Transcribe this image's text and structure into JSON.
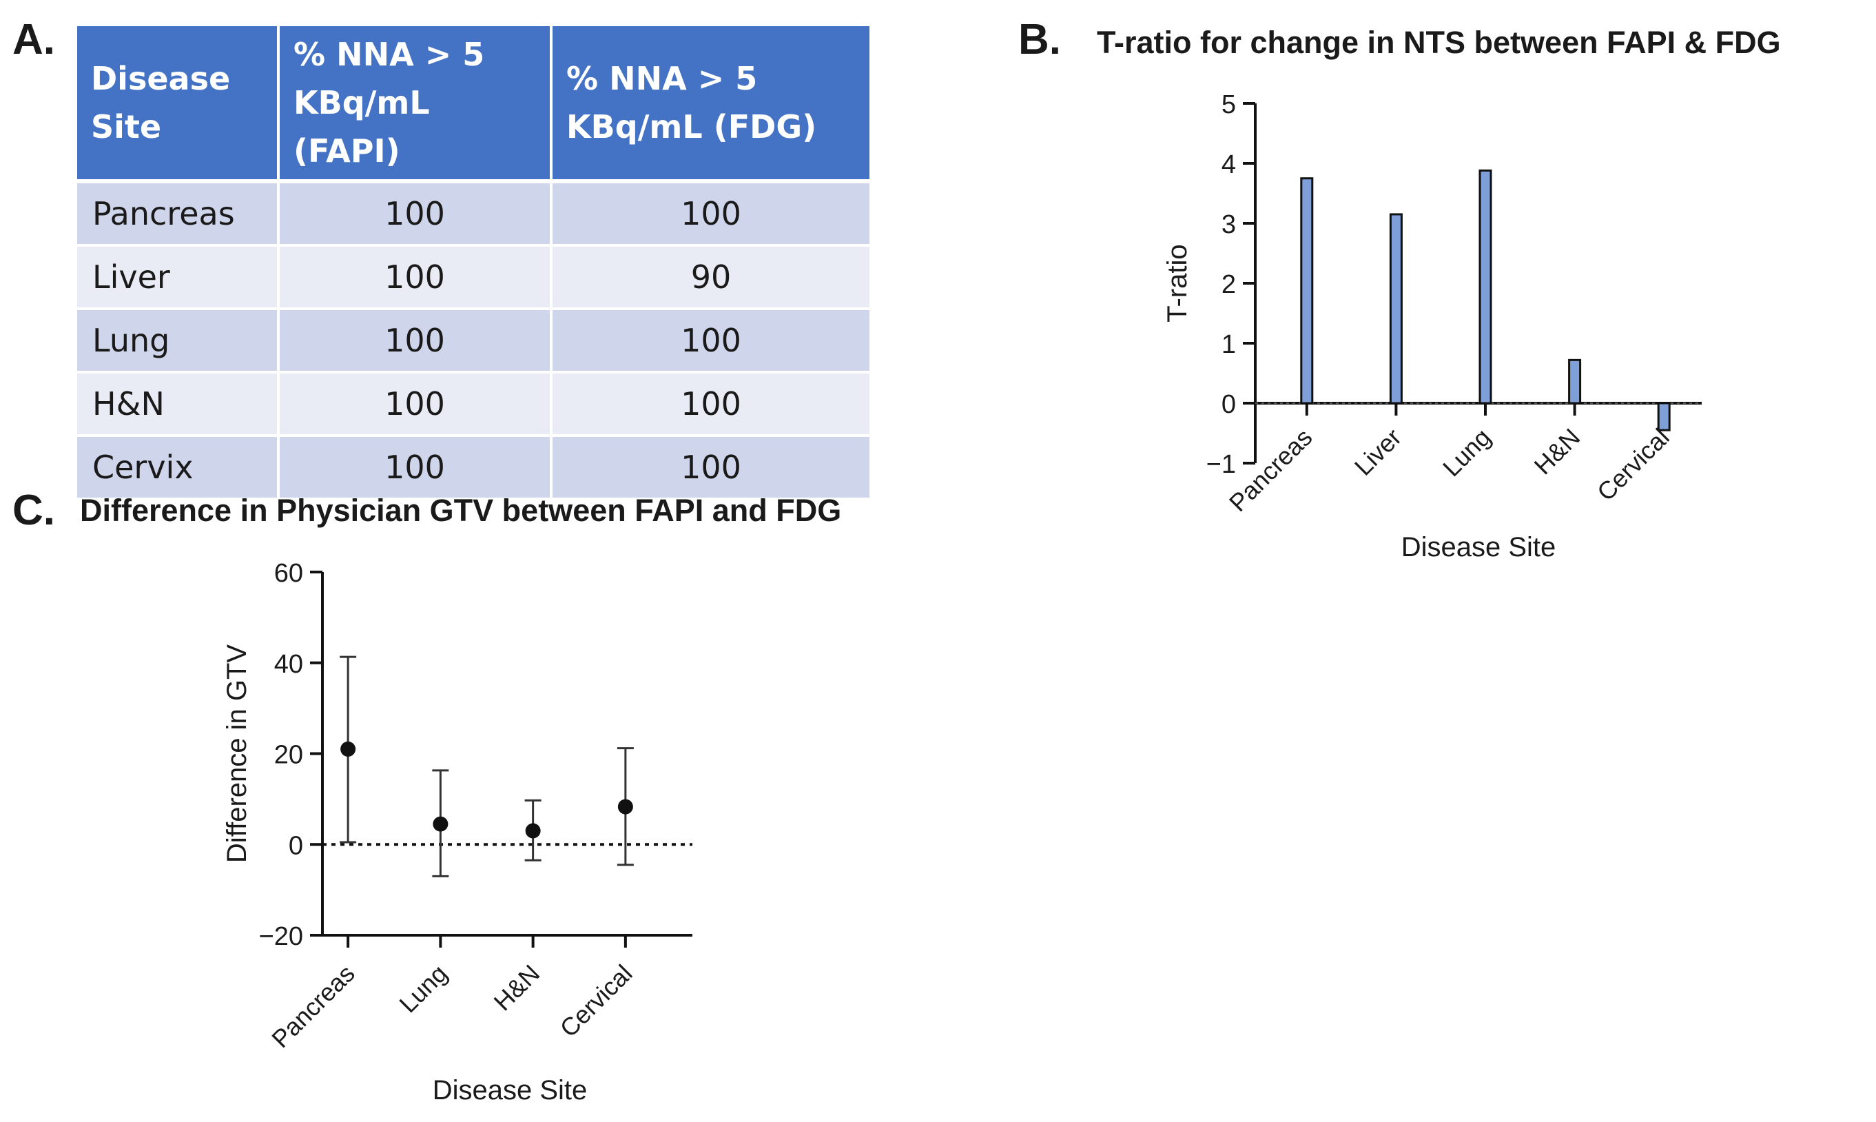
{
  "panels": {
    "a": {
      "letter": "A."
    },
    "b": {
      "letter": "B.",
      "title": "T-ratio for change in NTS between FAPI & FDG"
    },
    "c": {
      "letter": "C.",
      "title": "Difference in Physician GTV between FAPI and FDG"
    }
  },
  "table": {
    "headers": [
      "Disease Site",
      "% NNA > 5 KBq/mL (FAPI)",
      "% NNA > 5 KBq/mL (FDG)"
    ],
    "header_lines": [
      [
        "Disease",
        "Site"
      ],
      [
        "% NNA > 5",
        "KBq/mL (FAPI)"
      ],
      [
        "% NNA > 5",
        "KBq/mL (FDG)"
      ]
    ],
    "rows": [
      [
        "Pancreas",
        "100",
        "100"
      ],
      [
        "Liver",
        "100",
        "90"
      ],
      [
        "Lung",
        "100",
        "100"
      ],
      [
        "H&N",
        "100",
        "100"
      ],
      [
        "Cervix",
        "100",
        "100"
      ]
    ]
  },
  "chart_data": [
    {
      "type": "table",
      "columns": [
        "Disease Site",
        "% NNA > 5 KBq/mL (FAPI)",
        "% NNA > 5 KBq/mL (FDG)"
      ],
      "rows": [
        [
          "Pancreas",
          100,
          100
        ],
        [
          "Liver",
          100,
          90
        ],
        [
          "Lung",
          100,
          100
        ],
        [
          "H&N",
          100,
          100
        ],
        [
          "Cervix",
          100,
          100
        ]
      ]
    },
    {
      "type": "bar",
      "title": "T-ratio for change in NTS between FAPI & FDG",
      "categories": [
        "Pancreas",
        "Liver",
        "Lung",
        "H&N",
        "Cervical"
      ],
      "values": [
        3.75,
        3.15,
        3.88,
        0.72,
        -0.45
      ],
      "xlabel": "Disease Site",
      "ylabel": "T-ratio",
      "ylim": [
        -1,
        5
      ],
      "yticks": [
        -1,
        0,
        1,
        2,
        3,
        4,
        5
      ],
      "reference_line": 0,
      "bar_color": "#7f9fd8"
    },
    {
      "type": "scatter",
      "title": "Difference in Physician GTV between FAPI and FDG",
      "categories": [
        "Pancreas",
        "Lung",
        "H&N",
        "Cervical"
      ],
      "values": [
        21,
        4.5,
        3,
        8.3
      ],
      "error_low": [
        0.5,
        -7,
        -3.5,
        -4.5
      ],
      "error_high": [
        41.3,
        16.3,
        9.7,
        21.2
      ],
      "xlabel": "Disease Site",
      "ylabel": "Difference in  GTV",
      "ylim": [
        -20,
        60
      ],
      "yticks": [
        -20,
        0,
        20,
        40,
        60
      ],
      "reference_line": 0
    }
  ]
}
